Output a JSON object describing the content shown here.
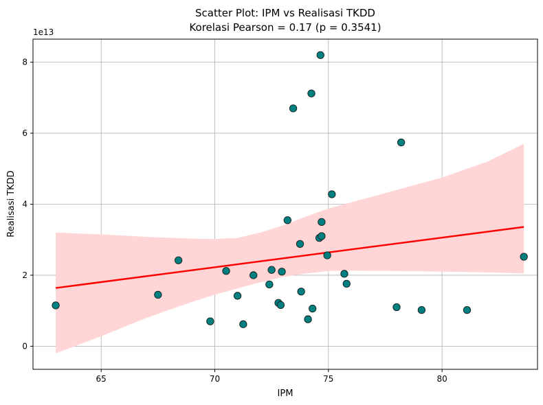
{
  "chart_data": {
    "type": "scatter",
    "title": "Scatter Plot: IPM vs Realisasi TKDD",
    "subtitle": "Korelasi Pearson = 0.17 (p = 0.3541)",
    "xlabel": "IPM",
    "ylabel": "Realisasi TKDD",
    "y_offset_label": "1e13",
    "xlim": [
      62.0,
      84.2
    ],
    "ylim": [
      -0.65,
      8.65
    ],
    "x_ticks": [
      65,
      70,
      75,
      80
    ],
    "y_ticks": [
      0,
      2,
      4,
      6,
      8
    ],
    "x_tick_labels": [
      "65",
      "70",
      "75",
      "80"
    ],
    "y_tick_labels": [
      "0",
      "2",
      "4",
      "6",
      "8"
    ],
    "grid": true,
    "points": {
      "x": [
        63.0,
        67.5,
        68.4,
        69.8,
        70.5,
        71.0,
        71.25,
        71.7,
        72.4,
        72.5,
        72.8,
        72.9,
        72.95,
        73.2,
        73.45,
        73.75,
        73.8,
        74.1,
        74.25,
        74.3,
        74.6,
        74.65,
        74.7,
        74.7,
        74.95,
        75.15,
        75.7,
        75.8,
        78.0,
        78.2,
        79.1,
        81.1,
        83.6
      ],
      "y": [
        1.15,
        1.45,
        2.42,
        0.7,
        2.12,
        1.42,
        0.62,
        2.0,
        1.74,
        2.15,
        1.22,
        1.16,
        2.1,
        3.55,
        6.7,
        2.88,
        1.54,
        0.76,
        7.12,
        1.06,
        3.05,
        8.2,
        3.5,
        3.1,
        2.56,
        4.28,
        2.04,
        1.76,
        1.1,
        5.74,
        1.02,
        1.02,
        2.52
      ],
      "color": "#008080",
      "edge_color": "#1a1a1a"
    },
    "regression": {
      "x": [
        63.0,
        83.6
      ],
      "y": [
        1.64,
        3.36
      ],
      "color": "#ff0000"
    },
    "confidence_band": {
      "x": [
        63.0,
        65.0,
        67.0,
        69.0,
        70.0,
        71.0,
        72.0,
        73.0,
        74.0,
        75.0,
        76.0,
        78.0,
        80.0,
        82.0,
        83.6
      ],
      "upper": [
        3.2,
        3.15,
        3.08,
        3.03,
        3.02,
        3.05,
        3.2,
        3.4,
        3.65,
        3.88,
        4.05,
        4.4,
        4.75,
        5.2,
        5.7
      ],
      "lower": [
        -0.2,
        0.28,
        0.8,
        1.25,
        1.45,
        1.63,
        1.8,
        1.95,
        2.05,
        2.12,
        2.13,
        2.12,
        2.1,
        2.08,
        2.05
      ],
      "color": "#ffd5d5"
    }
  }
}
